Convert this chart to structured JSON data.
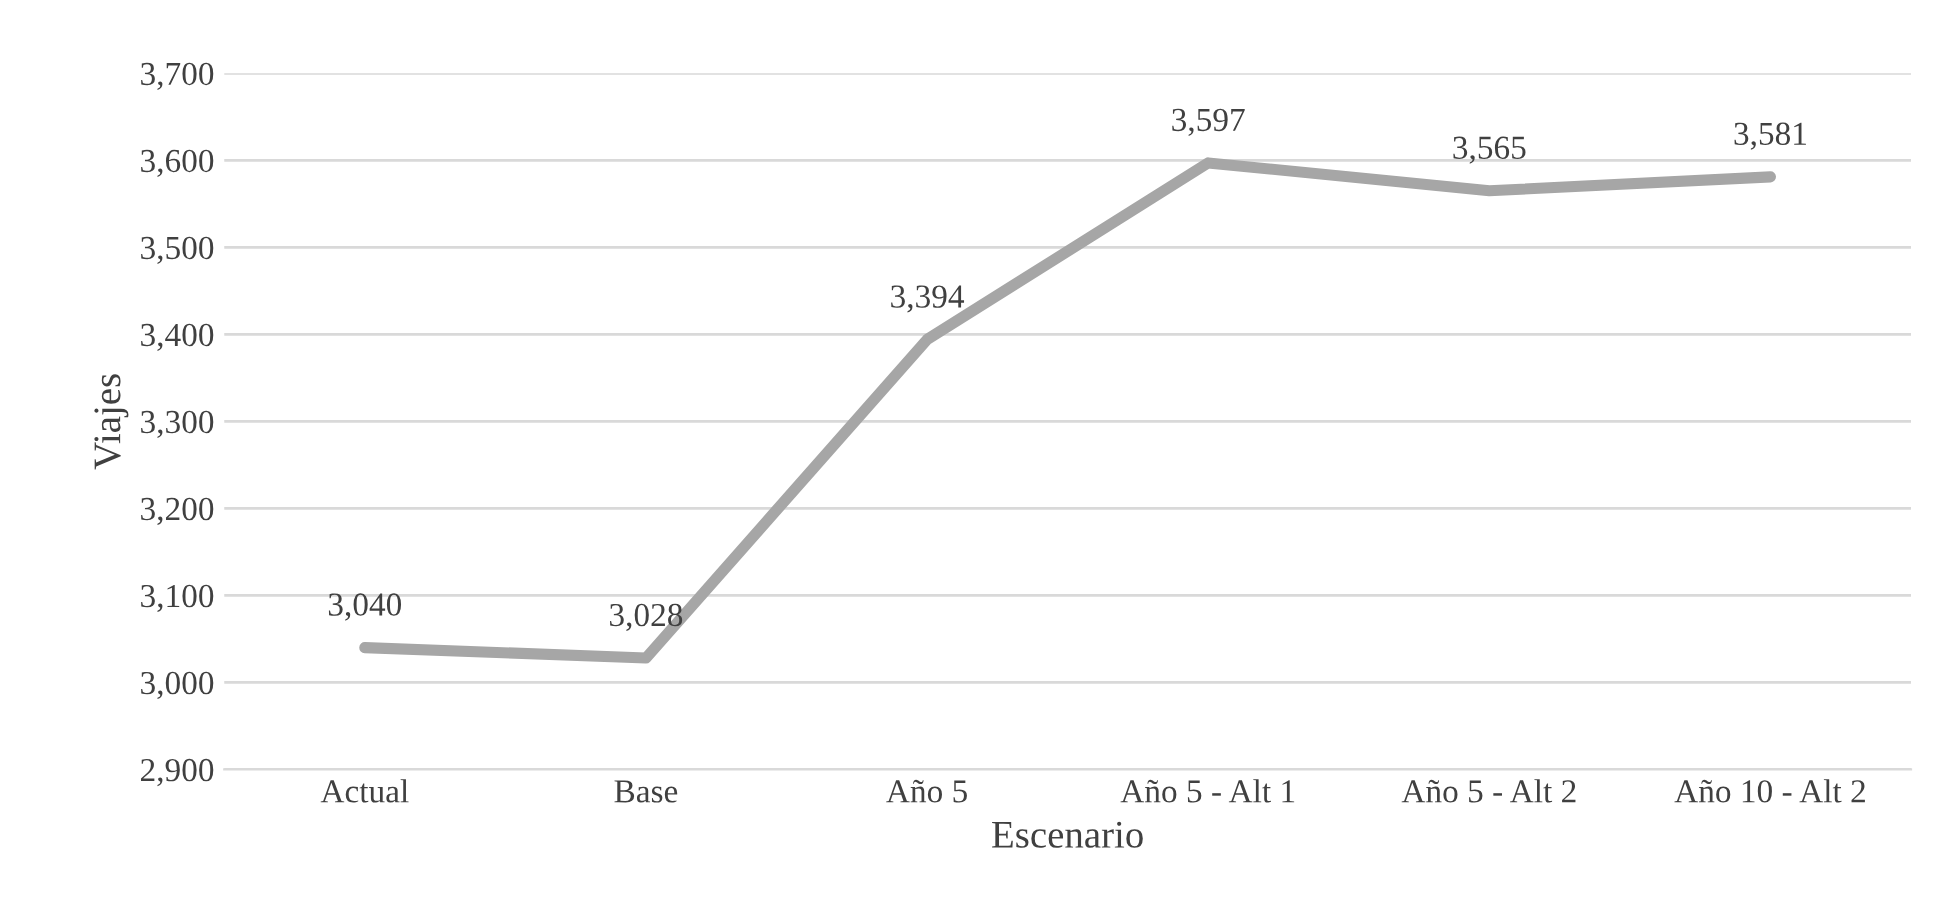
{
  "chart_data": {
    "type": "line",
    "xlabel": "Escenario",
    "ylabel": "Viajes",
    "categories": [
      "Actual",
      "Base",
      "Año 5",
      "Año 5 - Alt 1",
      "Año 5 - Alt 2",
      "Año 10 - Alt 2"
    ],
    "series": [
      {
        "color": "#a6a6a6",
        "values": [
          3040,
          3028,
          3394,
          3597,
          3565,
          3581
        ],
        "value_labels": [
          "3,040",
          "3,028",
          "3,394",
          "3,597",
          "3,565",
          "3,581"
        ]
      }
    ],
    "ylim": [
      2900,
      3700
    ],
    "yticks": [
      {
        "value": 2900,
        "label": "2,900"
      },
      {
        "value": 3000,
        "label": "3,000"
      },
      {
        "value": 3100,
        "label": "3,100"
      },
      {
        "value": 3200,
        "label": "3,200"
      },
      {
        "value": 3300,
        "label": "3,300"
      },
      {
        "value": 3400,
        "label": "3,400"
      },
      {
        "value": 3500,
        "label": "3,500"
      },
      {
        "value": 3600,
        "label": "3,600"
      },
      {
        "value": 3700,
        "label": "3,700"
      }
    ],
    "grid": "y",
    "legend": false,
    "marker": "none",
    "line_style": "solid"
  }
}
